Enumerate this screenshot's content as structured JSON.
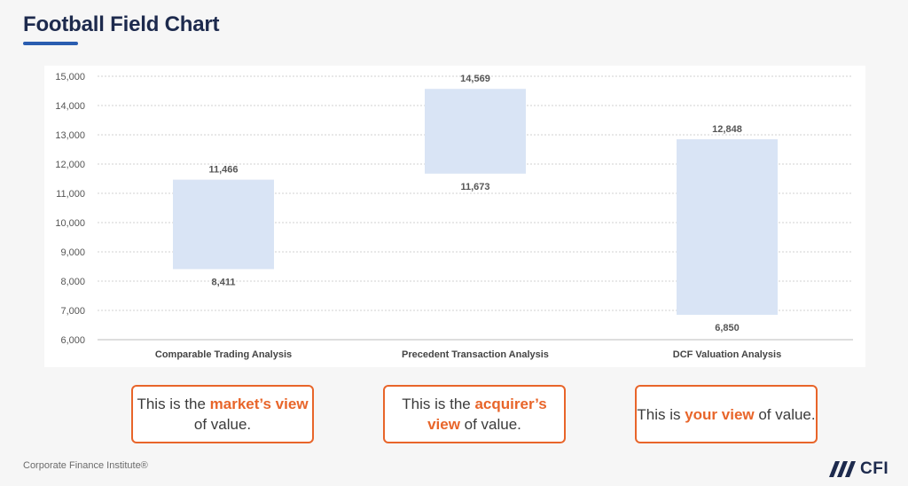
{
  "header": {
    "title": "Football Field Chart"
  },
  "chart_data": {
    "type": "bar",
    "subtype": "floating-range",
    "title": "Football Field Chart",
    "categories": [
      "Comparable Trading Analysis",
      "Precedent Transaction Analysis",
      "DCF Valuation Analysis"
    ],
    "series": [
      {
        "low": [
          8411,
          11673,
          6850
        ],
        "high": [
          11466,
          14569,
          12848
        ]
      }
    ],
    "low_labels": [
      "8,411",
      "11,673",
      "6,850"
    ],
    "high_labels": [
      "11,466",
      "14,569",
      "12,848"
    ],
    "ylim": [
      6000,
      15000
    ],
    "yticks": [
      6000,
      7000,
      8000,
      9000,
      10000,
      11000,
      12000,
      13000,
      14000,
      15000
    ],
    "ytick_labels": [
      "6,000",
      "7,000",
      "8,000",
      "9,000",
      "10,000",
      "11,000",
      "12,000",
      "13,000",
      "14,000",
      "15,000"
    ],
    "xlabel": "",
    "ylabel": "",
    "grid": true,
    "bar_color": "#d9e4f5"
  },
  "callouts": [
    {
      "before": "This is the ",
      "highlight": "market’s view",
      "after": " of value."
    },
    {
      "before": "This is the ",
      "highlight": "acquirer’s view",
      "after": " of value."
    },
    {
      "before": "This is ",
      "highlight": "your view",
      "after": " of value."
    }
  ],
  "footer": {
    "source": "Corporate Finance Institute®"
  },
  "logo": {
    "text": "CFI",
    "mark_color": "#1d2a4d"
  },
  "colors": {
    "accent": "#e8652a",
    "title": "#1d2a4d",
    "underline": "#2a5db0"
  }
}
